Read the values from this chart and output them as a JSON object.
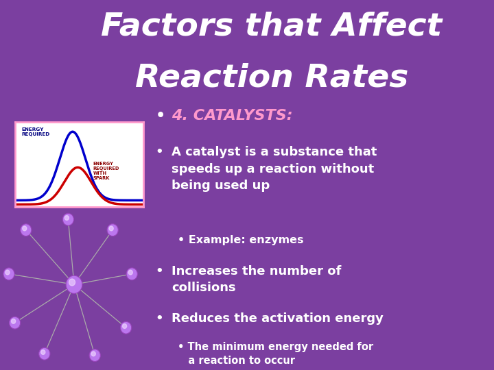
{
  "title_line1": "Factors that Affect",
  "title_line2": "Reaction Rates",
  "bg_color": "#7B3FA0",
  "title_color": "#FFFFFF",
  "title_fontsize": 34,
  "bullet1_color": "#FF99CC",
  "graph_border": "#FF99CC",
  "curve1_color": "#0000CC",
  "curve2_color": "#CC0000",
  "graph_label1": "ENERGY\nREQUIRED",
  "graph_label2": "ENERGY\nREQUIRED\nWITH\nSPARK",
  "node_color": "#BB77EE",
  "line_color": "#AAAAAA",
  "fs_main": 13,
  "fs_sub": 11.5,
  "fs_subsub": 10.5
}
